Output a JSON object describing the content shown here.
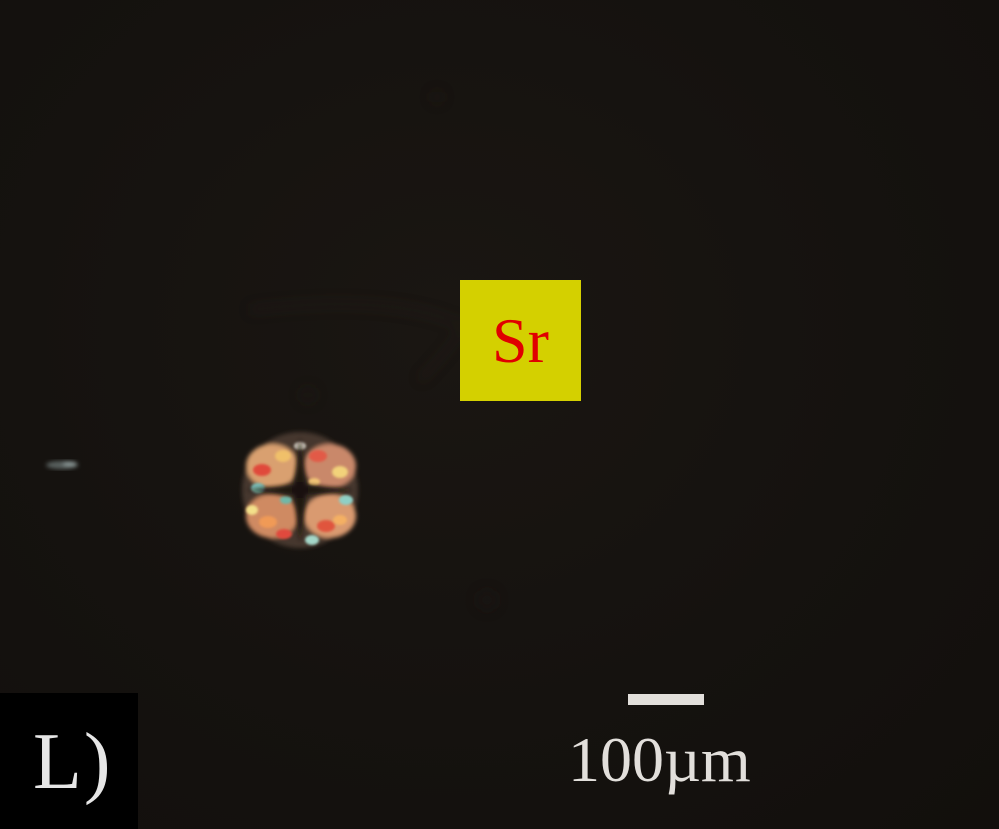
{
  "image": {
    "background_color": "#15120f"
  },
  "element_label": {
    "text": "Sr",
    "text_color": "#e00000",
    "box_color": "#d4d000"
  },
  "panel_label": {
    "text": "L)"
  },
  "scale_bar": {
    "text": "100µm"
  }
}
